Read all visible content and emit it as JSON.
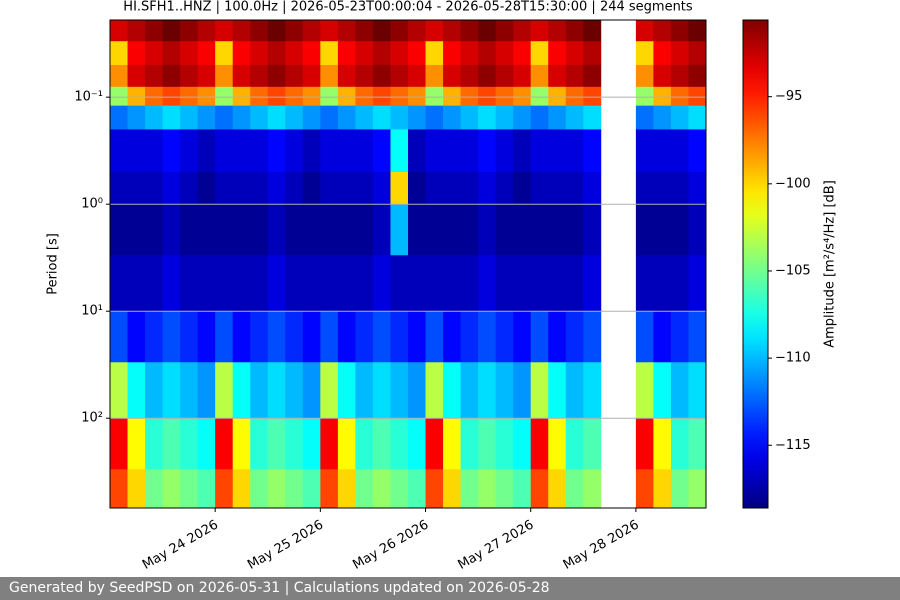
{
  "chart_data": {
    "type": "heatmap",
    "title": "HI.SFH1..HNZ | 100.0Hz | 2026-05-23T00:00:04 - 2026-05-28T15:30:00 | 244 segments",
    "y_label": "Period [s]",
    "colorbar_label": "Amplitude [m²/s⁴/Hz] [dB]",
    "colormap": "jet",
    "y_log": true,
    "y_inverted": true,
    "grid": true,
    "x": [
      "2026-05-23T00:00",
      "2026-05-23T04:00",
      "2026-05-23T08:00",
      "2026-05-23T12:00",
      "2026-05-23T16:00",
      "2026-05-23T20:00",
      "2026-05-24T00:00",
      "2026-05-24T04:00",
      "2026-05-24T08:00",
      "2026-05-24T12:00",
      "2026-05-24T16:00",
      "2026-05-24T20:00",
      "2026-05-25T00:00",
      "2026-05-25T04:00",
      "2026-05-25T08:00",
      "2026-05-25T12:00",
      "2026-05-25T16:00",
      "2026-05-25T20:00",
      "2026-05-26T00:00",
      "2026-05-26T04:00",
      "2026-05-26T08:00",
      "2026-05-26T12:00",
      "2026-05-26T16:00",
      "2026-05-26T20:00",
      "2026-05-27T00:00",
      "2026-05-27T04:00",
      "2026-05-27T08:00",
      "2026-05-27T12:00",
      "2026-05-27T16:00",
      "2026-05-27T20:00",
      "2026-05-28T00:00",
      "2026-05-28T04:00",
      "2026-05-28T08:00",
      "2026-05-28T12:00",
      "2026-05-28T16:00"
    ],
    "xlim": [
      "2026-05-23T00:00",
      "2026-05-28T16:00"
    ],
    "xticks": [
      {
        "value": "2026-05-24T00:00",
        "label": "May 24 2026"
      },
      {
        "value": "2026-05-25T00:00",
        "label": "May 25 2026"
      },
      {
        "value": "2026-05-26T00:00",
        "label": "May 26 2026"
      },
      {
        "value": "2026-05-27T00:00",
        "label": "May 27 2026"
      },
      {
        "value": "2026-05-28T00:00",
        "label": "May 28 2026"
      }
    ],
    "y_edges": [
      0.019,
      0.03,
      0.05,
      0.08,
      0.12,
      0.2,
      0.5,
      1,
      3,
      10,
      30,
      100,
      300,
      690
    ],
    "ylim": [
      0.019,
      690
    ],
    "yticks": [
      {
        "value": 0.1,
        "label": "10⁻¹"
      },
      {
        "value": 1,
        "label": "10⁰"
      },
      {
        "value": 10,
        "label": "10¹"
      },
      {
        "value": 100,
        "label": "10²"
      }
    ],
    "clim": [
      -118.6,
      -90.6
    ],
    "cticks": [
      {
        "value": -95,
        "label": "−95"
      },
      {
        "value": -100,
        "label": "−100"
      },
      {
        "value": -105,
        "label": "−105"
      },
      {
        "value": -110,
        "label": "−110"
      },
      {
        "value": -115,
        "label": "−115"
      }
    ],
    "z": [
      [
        -93,
        -92,
        -91,
        -90,
        -91,
        -92,
        -93,
        -92,
        -91,
        -90,
        -91,
        -92,
        -93,
        -92,
        -91,
        -90,
        -91,
        -92,
        -93,
        -92,
        -91,
        -90,
        -91,
        -92,
        -93,
        -92,
        -91,
        -90,
        null,
        null,
        -93,
        -92,
        -91,
        -90
      ],
      [
        -100,
        -94,
        -93,
        -92,
        -93,
        -94,
        -100,
        -94,
        -93,
        -92,
        -93,
        -94,
        -100,
        -94,
        -93,
        -92,
        -93,
        -94,
        -100,
        -94,
        -93,
        -92,
        -93,
        -94,
        -100,
        -94,
        -93,
        -92,
        null,
        null,
        -100,
        -94,
        -93,
        -92
      ],
      [
        -98,
        -93,
        -92,
        -91,
        -92,
        -93,
        -98,
        -93,
        -92,
        -91,
        -92,
        -93,
        -98,
        -93,
        -92,
        -91,
        -92,
        -93,
        -98,
        -93,
        -92,
        -91,
        -92,
        -93,
        -98,
        -93,
        -92,
        -91,
        null,
        null,
        -98,
        -93,
        -92,
        -91
      ],
      [
        -104,
        -99,
        -97,
        -96,
        -97,
        -98,
        -104,
        -99,
        -97,
        -96,
        -97,
        -98,
        -104,
        -99,
        -97,
        -96,
        -97,
        -98,
        -104,
        -99,
        -97,
        -96,
        -97,
        -98,
        -104,
        -99,
        -97,
        -96,
        null,
        null,
        -104,
        -99,
        -97,
        -96
      ],
      [
        -112,
        -111,
        -110,
        -109,
        -110,
        -111,
        -112,
        -111,
        -110,
        -109,
        -110,
        -111,
        -112,
        -111,
        -110,
        -109,
        -110,
        -111,
        -112,
        -111,
        -110,
        -109,
        -110,
        -111,
        -112,
        -111,
        -110,
        -109,
        null,
        null,
        -112,
        -111,
        -110,
        -109
      ],
      [
        -116,
        -116,
        -116,
        -115,
        -116,
        -117,
        -116,
        -116,
        -116,
        -115,
        -116,
        -117,
        -116,
        -116,
        -116,
        -115,
        -108,
        -117,
        -116,
        -116,
        -116,
        -115,
        -116,
        -117,
        -116,
        -116,
        -116,
        -115,
        null,
        null,
        -116,
        -116,
        -116,
        -115
      ],
      [
        -117,
        -117,
        -117,
        -116,
        -117,
        -118,
        -117,
        -117,
        -117,
        -116,
        -117,
        -118,
        -117,
        -117,
        -117,
        -116,
        -100,
        -118,
        -117,
        -117,
        -117,
        -116,
        -117,
        -118,
        -117,
        -117,
        -117,
        -116,
        null,
        null,
        -117,
        -117,
        -117,
        -116
      ],
      [
        -118,
        -118,
        -118,
        -117,
        -118,
        -118,
        -118,
        -118,
        -118,
        -117,
        -118,
        -118,
        -118,
        -118,
        -118,
        -117,
        -110,
        -118,
        -118,
        -118,
        -118,
        -117,
        -118,
        -118,
        -118,
        -118,
        -118,
        -117,
        null,
        null,
        -118,
        -118,
        -118,
        -117
      ],
      [
        -117,
        -117,
        -117,
        -116,
        -117,
        -117,
        -117,
        -117,
        -117,
        -116,
        -117,
        -117,
        -117,
        -117,
        -117,
        -116,
        -117,
        -117,
        -117,
        -117,
        -117,
        -116,
        -117,
        -117,
        -117,
        -117,
        -117,
        -116,
        null,
        null,
        -117,
        -117,
        -117,
        -116
      ],
      [
        -113,
        -115,
        -114,
        -113,
        -114,
        -115,
        -113,
        -115,
        -114,
        -113,
        -114,
        -115,
        -113,
        -115,
        -114,
        -113,
        -114,
        -115,
        -113,
        -115,
        -114,
        -113,
        -114,
        -115,
        -113,
        -115,
        -114,
        -113,
        null,
        null,
        -113,
        -115,
        -114,
        -113
      ],
      [
        -103,
        -108,
        -110,
        -109,
        -110,
        -111,
        -103,
        -108,
        -110,
        -109,
        -110,
        -111,
        -103,
        -108,
        -110,
        -109,
        -110,
        -111,
        -103,
        -108,
        -110,
        -109,
        -110,
        -111,
        -103,
        -108,
        -110,
        -109,
        null,
        null,
        -103,
        -108,
        -110,
        -109
      ],
      [
        -94,
        -101,
        -107,
        -106,
        -107,
        -108,
        -94,
        -101,
        -107,
        -106,
        -107,
        -108,
        -94,
        -101,
        -107,
        -106,
        -107,
        -108,
        -94,
        -101,
        -107,
        -106,
        -107,
        -108,
        -94,
        -101,
        -107,
        -106,
        null,
        null,
        -94,
        -101,
        -107,
        -106
      ],
      [
        -96,
        -100,
        -105,
        -104,
        -105,
        -106,
        -96,
        -100,
        -105,
        -104,
        -105,
        -106,
        -96,
        -100,
        -105,
        -104,
        -105,
        -106,
        -96,
        -100,
        -105,
        -104,
        -105,
        -106,
        -96,
        -100,
        -105,
        -104,
        null,
        null,
        -96,
        -100,
        -105,
        -104
      ]
    ]
  },
  "footer": "Generated by SeedPSD on 2026-05-31 | Calculations updated on 2026-05-28"
}
